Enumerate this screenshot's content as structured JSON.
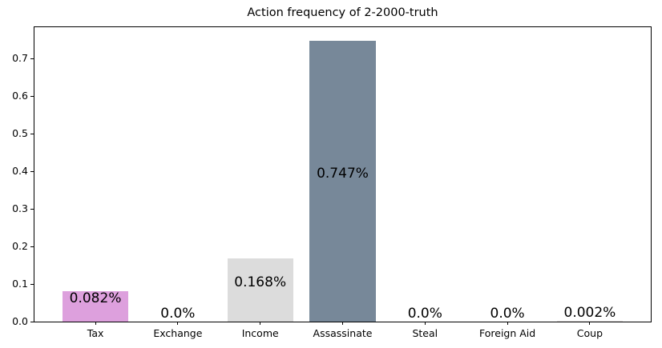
{
  "chart_data": {
    "type": "bar",
    "title": "Action frequency of 2-2000-truth",
    "categories": [
      "Tax",
      "Exchange",
      "Income",
      "Assassinate",
      "Steal",
      "Foreign Aid",
      "Coup"
    ],
    "values": [
      0.082,
      0.0,
      0.168,
      0.747,
      0.0,
      0.0,
      0.002
    ],
    "bar_labels": [
      "0.082%",
      "0.0%",
      "0.168%",
      "0.747%",
      "0.0%",
      "0.0%",
      "0.002%"
    ],
    "bar_colors": [
      "#dda0dd",
      "#ffffff",
      "#dcdcdc",
      "#778899",
      "#ffffff",
      "#ffffff",
      "#e4e0e0"
    ],
    "xlabel": "",
    "ylabel": "",
    "ylim": [
      0.0,
      0.784
    ],
    "yticks": [
      0.0,
      0.1,
      0.2,
      0.3,
      0.4,
      0.5,
      0.6,
      0.7
    ],
    "grid": false,
    "legend_position": "none",
    "background_color": "#ffffff",
    "axis_color": "#000000",
    "text_color": "#000000"
  }
}
